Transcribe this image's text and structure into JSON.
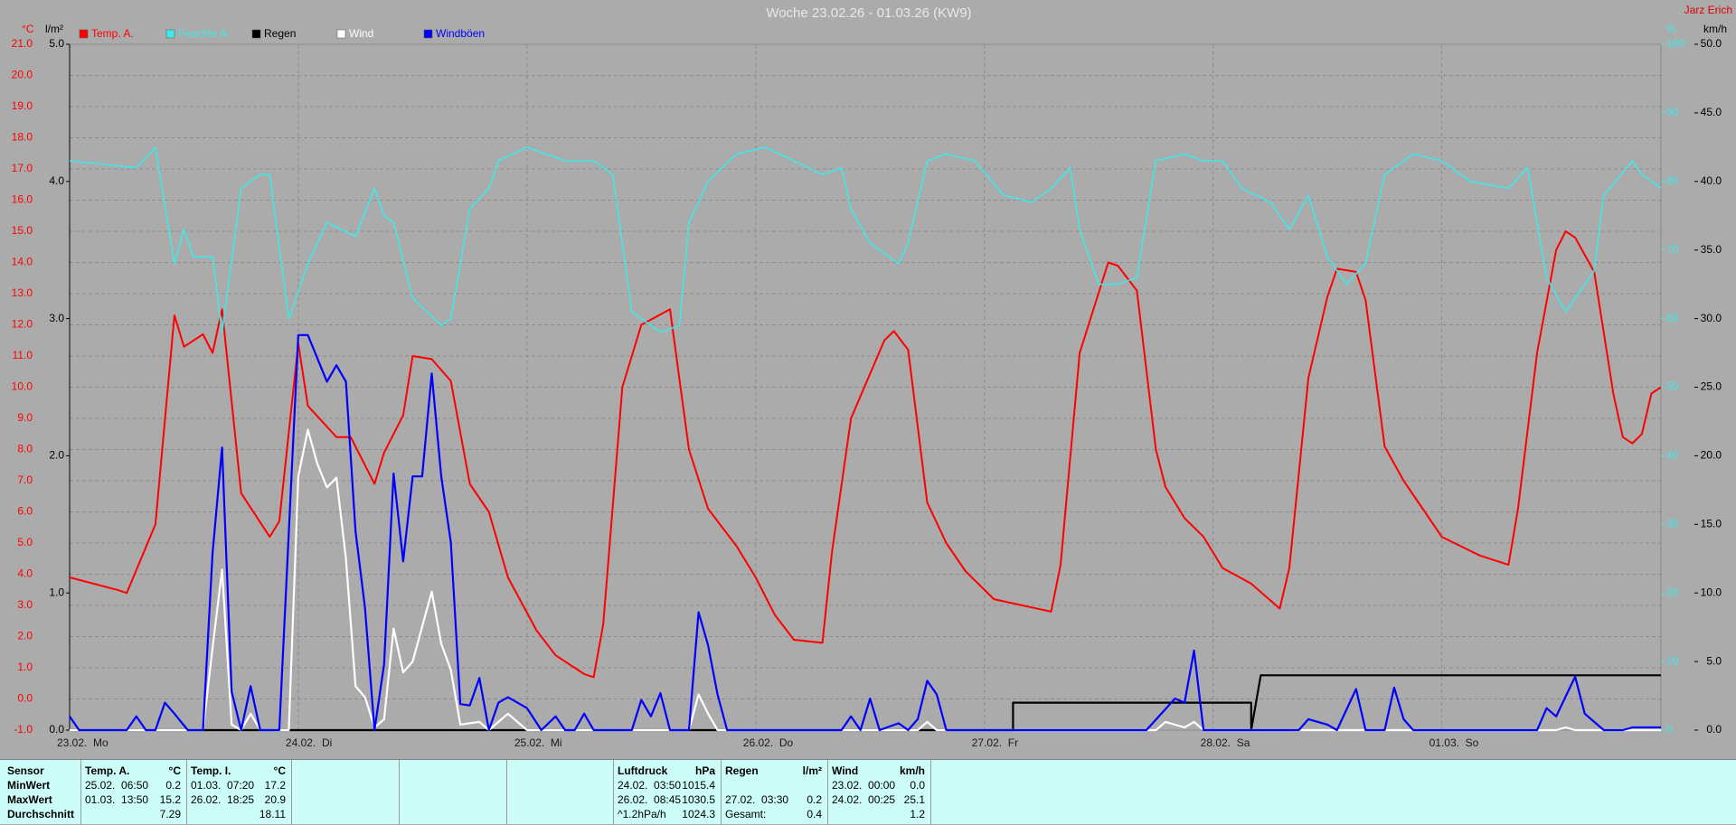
{
  "chart_data": {
    "type": "line",
    "title": "Woche 23.02.26 - 01.03.26 (KW9)",
    "author": "Jarz Erich",
    "y_label": "°C",
    "y4_label": "l/m²",
    "y3_label": "%",
    "y2_label": "km/h",
    "xlim": [
      0,
      167
    ],
    "xticks": [
      {
        "value": 0,
        "label": "23.02.  Mo"
      },
      {
        "value": 24,
        "label": "24.02.  Di"
      },
      {
        "value": 48,
        "label": "25.02.  Mi"
      },
      {
        "value": 72,
        "label": "26.02.  Do"
      },
      {
        "value": 96,
        "label": "27.02.  Fr"
      },
      {
        "value": 120,
        "label": "28.02.  Sa"
      },
      {
        "value": 144,
        "label": "01.03.  So"
      }
    ],
    "ylim": [
      -1,
      21
    ],
    "yticks": [
      {
        "value": -1,
        "label": "-1.0"
      },
      {
        "value": 0,
        "label": "0.0"
      },
      {
        "value": 1,
        "label": "1.0"
      },
      {
        "value": 2,
        "label": "2.0"
      },
      {
        "value": 3,
        "label": "3.0"
      },
      {
        "value": 4,
        "label": "4.0"
      },
      {
        "value": 5,
        "label": "5.0"
      },
      {
        "value": 6,
        "label": "6.0"
      },
      {
        "value": 7,
        "label": "7.0"
      },
      {
        "value": 8,
        "label": "8.0"
      },
      {
        "value": 9,
        "label": "9.0"
      },
      {
        "value": 10,
        "label": "10.0"
      },
      {
        "value": 11,
        "label": "11.0"
      },
      {
        "value": 12,
        "label": "12.0"
      },
      {
        "value": 13,
        "label": "13.0"
      },
      {
        "value": 14,
        "label": "14.0"
      },
      {
        "value": 15,
        "label": "15.0"
      },
      {
        "value": 16,
        "label": "16.0"
      },
      {
        "value": 17,
        "label": "17.0"
      },
      {
        "value": 18,
        "label": "18.0"
      },
      {
        "value": 19,
        "label": "19.0"
      },
      {
        "value": 20,
        "label": "20.0"
      },
      {
        "value": 21,
        "label": "21.0"
      }
    ],
    "y4lim": [
      0,
      5
    ],
    "y4ticks": [
      {
        "value": 0,
        "label": "0.0"
      },
      {
        "value": 1,
        "label": "1.0"
      },
      {
        "value": 2,
        "label": "2.0"
      },
      {
        "value": 3,
        "label": "3.0"
      },
      {
        "value": 4,
        "label": "4.0"
      },
      {
        "value": 5,
        "label": "5.0"
      }
    ],
    "y3lim": [
      0,
      100
    ],
    "y3ticks": [
      0,
      10,
      20,
      30,
      40,
      50,
      60,
      70,
      80,
      90,
      100
    ],
    "y2lim": [
      0,
      50
    ],
    "y2ticks": [
      {
        "value": 0,
        "label": "0.0"
      },
      {
        "value": 5,
        "label": "5.0"
      },
      {
        "value": 10,
        "label": "10.0"
      },
      {
        "value": 15,
        "label": "15.0"
      },
      {
        "value": 20,
        "label": "20.0"
      },
      {
        "value": 25,
        "label": "25.0"
      },
      {
        "value": 30,
        "label": "30.0"
      },
      {
        "value": 35,
        "label": "35.0"
      },
      {
        "value": 40,
        "label": "40.0"
      },
      {
        "value": 45,
        "label": "45.0"
      },
      {
        "value": 50,
        "label": "50.0"
      }
    ],
    "grid": true,
    "series": [
      {
        "name": "Temp. A.",
        "color": "#ff0000",
        "axis": "y",
        "x": [
          0,
          5,
          6,
          9,
          11,
          12,
          14,
          15,
          16,
          18,
          21,
          22,
          24,
          25,
          28,
          29.5,
          32,
          33,
          35,
          36,
          38,
          40,
          42,
          44,
          46,
          49,
          51,
          54,
          55,
          56,
          58,
          60,
          63,
          65,
          67,
          70,
          72,
          74,
          76,
          79,
          80,
          82,
          85.5,
          86.5,
          88,
          90,
          92,
          94,
          97,
          100,
          103,
          104,
          106,
          109,
          110,
          112,
          114,
          115,
          117,
          119,
          121,
          124,
          127,
          128,
          130,
          132,
          133,
          135,
          136,
          138,
          140,
          142,
          144,
          146,
          148,
          151,
          152,
          154,
          156,
          157,
          158,
          160,
          162,
          163,
          164,
          165,
          166,
          167
        ],
        "values": [
          3.9,
          3.5,
          3.4,
          5.6,
          12.3,
          11.3,
          11.7,
          11.1,
          12.5,
          6.6,
          5.2,
          5.7,
          11.4,
          9.4,
          8.4,
          8.4,
          6.9,
          7.9,
          9.1,
          11.0,
          10.9,
          10.2,
          6.9,
          6.0,
          3.9,
          2.2,
          1.4,
          0.8,
          0.7,
          2.4,
          10.0,
          12.0,
          12.5,
          8.0,
          6.1,
          4.9,
          3.9,
          2.7,
          1.9,
          1.8,
          4.7,
          9.0,
          11.5,
          11.8,
          11.2,
          6.3,
          5.0,
          4.1,
          3.2,
          3.0,
          2.8,
          4.3,
          11.1,
          14.0,
          13.9,
          13.1,
          8.0,
          6.8,
          5.8,
          5.2,
          4.2,
          3.7,
          2.9,
          4.2,
          10.3,
          12.9,
          13.8,
          13.7,
          12.8,
          8.1,
          7.0,
          6.1,
          5.2,
          4.9,
          4.6,
          4.3,
          6.1,
          11.1,
          14.4,
          15.0,
          14.8,
          13.7,
          9.8,
          8.4,
          8.2,
          8.5,
          9.8,
          10.0
        ]
      },
      {
        "name": "Feuchte A.",
        "color": "#40e8e8",
        "axis": "y3",
        "x": [
          0,
          7,
          9,
          11,
          12,
          13,
          15,
          16,
          18,
          20,
          21,
          23,
          25,
          27,
          30,
          32,
          33,
          34,
          36,
          39,
          40,
          42,
          44,
          45,
          48,
          52,
          55,
          57,
          59,
          62,
          64,
          65,
          67,
          70,
          73,
          76,
          79,
          81,
          82,
          84,
          87,
          88,
          90,
          92,
          95,
          98,
          101,
          103,
          105,
          106,
          108,
          110,
          112,
          114,
          117,
          119,
          121,
          123,
          126,
          128,
          130,
          132,
          134,
          136,
          138,
          141,
          144,
          147,
          151,
          153,
          155,
          157,
          160,
          161,
          164,
          165,
          167
        ],
        "values": [
          83,
          82,
          85,
          68,
          73,
          69,
          69,
          58,
          79,
          81,
          81,
          60,
          68,
          74,
          72,
          79,
          75,
          74,
          63,
          59,
          60,
          76,
          79,
          83,
          85,
          83,
          83,
          81,
          61,
          58,
          59,
          74,
          80,
          84,
          85,
          83,
          81,
          82,
          76,
          71,
          68,
          71,
          83,
          84,
          83,
          78,
          77,
          79,
          82,
          73,
          65,
          65,
          66,
          83,
          84,
          83,
          83,
          79,
          77,
          73,
          78,
          69,
          65,
          68,
          81,
          84,
          83,
          80,
          79,
          82,
          66,
          61,
          67,
          78,
          83,
          81,
          79
        ]
      },
      {
        "name": "Regen",
        "color": "#000000",
        "axis": "y4",
        "x": [
          0,
          99,
          99,
          124,
          124,
          125,
          167
        ],
        "values": [
          0,
          0,
          0.2,
          0.2,
          0,
          0.4,
          0.4
        ]
      },
      {
        "name": "Wind",
        "color": "#ffffff",
        "axis": "y2",
        "x": [
          0,
          14,
          15,
          16,
          17,
          18,
          19,
          20,
          23,
          24,
          25,
          26,
          27,
          28,
          29,
          30,
          31,
          32,
          33,
          34,
          35,
          36,
          38,
          39,
          40,
          41,
          43,
          44,
          46,
          48,
          65,
          66,
          67,
          68,
          89,
          90,
          91,
          114,
          115,
          117,
          118,
          119,
          156,
          157,
          158,
          167
        ],
        "values": [
          0,
          0,
          6.0,
          11.7,
          0.4,
          0,
          1.2,
          0,
          0,
          18.5,
          21.9,
          19.4,
          17.7,
          18.4,
          12.5,
          3.2,
          2.4,
          0.2,
          0.8,
          7.4,
          4.2,
          5.0,
          10.1,
          6.3,
          4.4,
          0.4,
          0.6,
          0,
          1.2,
          0,
          0,
          2.6,
          1.2,
          0,
          0,
          0.6,
          0,
          0,
          0.6,
          0.2,
          0.6,
          0,
          0,
          0.2,
          0,
          0
        ]
      },
      {
        "name": "Windböen",
        "color": "#0000ff",
        "axis": "y2",
        "x": [
          0,
          1,
          6,
          7,
          8,
          9,
          10,
          11,
          12.4,
          14,
          15,
          16,
          17,
          18,
          19,
          20,
          22,
          24,
          25,
          27,
          28,
          29,
          30,
          31,
          32,
          33,
          34,
          35,
          36,
          37,
          38,
          39,
          40,
          41,
          42,
          43,
          44,
          45,
          46,
          48,
          49.5,
          51,
          52,
          53,
          54,
          55,
          59,
          60,
          61,
          62,
          63,
          65,
          66,
          67,
          68,
          69,
          81,
          82,
          83,
          84,
          85,
          87,
          88,
          89,
          90,
          91,
          92,
          113,
          116,
          117,
          118,
          119,
          120,
          129,
          130,
          132,
          133,
          135,
          136,
          138,
          139,
          140,
          141,
          154,
          155,
          156,
          158,
          159,
          161,
          163,
          164,
          167
        ],
        "values": [
          1.0,
          0,
          0,
          1.0,
          0,
          0,
          2.0,
          1.2,
          0,
          0,
          12.9,
          20.6,
          2.8,
          0,
          3.2,
          0,
          0,
          28.8,
          28.8,
          25.4,
          26.6,
          25.4,
          14.5,
          8.9,
          0,
          4.8,
          18.7,
          12.3,
          18.5,
          18.5,
          26.0,
          18.5,
          13.7,
          1.9,
          1.8,
          3.8,
          0,
          2.0,
          2.4,
          1.6,
          0,
          1.0,
          0,
          0,
          1.2,
          0,
          0,
          2.2,
          1.0,
          2.7,
          0,
          0,
          8.6,
          6.2,
          2.6,
          0,
          0,
          1.0,
          0,
          2.3,
          0,
          0.5,
          0,
          0.8,
          3.6,
          2.6,
          0,
          0,
          2.3,
          2.0,
          5.8,
          0,
          0,
          0,
          0.8,
          0.4,
          0,
          3.0,
          0,
          0,
          3.1,
          0.8,
          0,
          0,
          1.6,
          1.0,
          3.9,
          1.2,
          0,
          0,
          0.2,
          0.2
        ]
      }
    ]
  },
  "stats": {
    "row_labels": [
      "Sensor",
      "MinWert",
      "MaxWert",
      "Durchschnitt"
    ],
    "columns": [
      {
        "title": "Temp. A.",
        "unit": "°C",
        "min": [
          "25.02.  06:50",
          "0.2"
        ],
        "max": [
          "01.03.  13:50",
          "15.2"
        ],
        "avg": [
          "7.29"
        ]
      },
      {
        "title": "Temp. I.",
        "unit": "°C",
        "min": [
          "01.03.  07:20",
          "17.2"
        ],
        "max": [
          "26.02.  18:25",
          "20.9"
        ],
        "avg": [
          "18.11"
        ]
      },
      {
        "title": "Luftdruck",
        "unit": "hPa",
        "min": [
          "24.02.  03:50",
          "1015.4"
        ],
        "max": [
          "26.02.  08:45",
          "1030.5"
        ],
        "avg": [
          "^1.2hPa/h",
          "1024.3"
        ]
      },
      {
        "title": "Regen",
        "unit": "l/m²",
        "max": [
          "27.02.  03:30",
          "0.2"
        ],
        "avg": [
          "Gesamt:",
          "0.4"
        ]
      },
      {
        "title": "Wind",
        "unit": "km/h",
        "min": [
          "23.02.  00:00",
          "0.0"
        ],
        "max": [
          "24.02.  00:25",
          "25.1"
        ],
        "avg": [
          "1.2"
        ]
      }
    ]
  }
}
